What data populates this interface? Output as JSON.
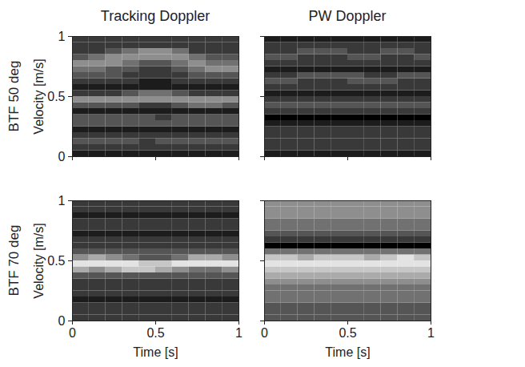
{
  "chart_data": [
    {
      "type": "heatmap",
      "title": "Tracking Doppler",
      "row_label": "BTF 50 deg",
      "ylabel": "Velocity [m/s]",
      "xlim": [
        0,
        1
      ],
      "xticks": [
        0,
        0.5,
        1
      ],
      "ylim": [
        0,
        1
      ],
      "yticks": [
        0,
        0.5,
        1
      ],
      "tick_labels": "y",
      "x_bins": [
        0,
        0.1,
        0.2,
        0.3,
        0.4,
        0.5,
        0.6,
        0.7,
        0.8,
        0.9,
        1
      ],
      "y_bins": [
        0,
        0.05,
        0.1,
        0.15,
        0.2,
        0.25,
        0.3,
        0.35,
        0.4,
        0.45,
        0.5,
        0.55,
        0.6,
        0.65,
        0.7,
        0.75,
        0.8,
        0.85,
        0.9,
        0.95,
        1
      ],
      "zlim": [
        0,
        9
      ],
      "cells": [
        [
          1,
          1,
          1,
          1,
          1,
          1,
          1,
          1,
          1,
          1
        ],
        [
          2,
          2,
          2,
          2,
          2,
          2,
          2,
          2,
          2,
          2
        ],
        [
          3,
          3,
          3,
          3,
          2,
          3,
          3,
          3,
          3,
          3
        ],
        [
          2,
          2,
          2,
          2,
          2,
          2,
          2,
          2,
          2,
          2
        ],
        [
          1,
          1,
          1,
          1,
          1,
          1,
          1,
          1,
          1,
          1
        ],
        [
          3,
          3,
          3,
          3,
          3,
          3,
          3,
          3,
          3,
          3
        ],
        [
          3,
          3,
          3,
          3,
          3,
          2,
          3,
          3,
          3,
          3
        ],
        [
          1,
          1,
          1,
          1,
          1,
          1,
          1,
          1,
          1,
          1
        ],
        [
          3,
          3,
          3,
          3,
          2,
          2,
          3,
          4,
          4,
          3
        ],
        [
          5,
          5,
          5,
          5,
          5,
          5,
          5,
          5,
          5,
          5
        ],
        [
          2,
          2,
          2,
          3,
          4,
          4,
          3,
          2,
          2,
          2
        ],
        [
          1,
          1,
          1,
          1,
          1,
          1,
          1,
          1,
          1,
          1
        ],
        [
          2,
          2,
          2,
          2,
          1,
          1,
          2,
          2,
          2,
          2
        ],
        [
          3,
          3,
          3,
          2,
          2,
          2,
          2,
          3,
          3,
          3
        ],
        [
          4,
          4,
          3,
          3,
          2,
          2,
          3,
          4,
          5,
          5
        ],
        [
          5,
          5,
          5,
          4,
          3,
          3,
          4,
          5,
          4,
          4
        ],
        [
          3,
          4,
          5,
          5,
          5,
          5,
          5,
          4,
          3,
          3
        ],
        [
          2,
          2,
          3,
          4,
          5,
          5,
          4,
          2,
          2,
          2
        ],
        [
          2,
          2,
          2,
          2,
          2,
          2,
          2,
          2,
          2,
          2
        ],
        [
          2,
          2,
          2,
          2,
          2,
          2,
          2,
          2,
          2,
          2
        ]
      ]
    },
    {
      "type": "heatmap",
      "title": "PW Doppler",
      "xlim": [
        0,
        1
      ],
      "xticks": [
        0,
        0.5,
        1
      ],
      "ylim": [
        0,
        1
      ],
      "yticks": [
        0,
        0.5,
        1
      ],
      "tick_labels": false,
      "x_bins": [
        0,
        0.1,
        0.2,
        0.3,
        0.4,
        0.5,
        0.6,
        0.7,
        0.8,
        0.9,
        1
      ],
      "y_bins": [
        0,
        0.05,
        0.1,
        0.15,
        0.2,
        0.25,
        0.3,
        0.35,
        0.4,
        0.45,
        0.5,
        0.55,
        0.6,
        0.65,
        0.7,
        0.75,
        0.8,
        0.85,
        0.9,
        0.95,
        1
      ],
      "zlim": [
        0,
        9
      ],
      "cells": [
        [
          1,
          1,
          1,
          1,
          1,
          1,
          1,
          1,
          1,
          1
        ],
        [
          2,
          2,
          2,
          2,
          2,
          2,
          2,
          2,
          2,
          2
        ],
        [
          2,
          2,
          2,
          2,
          2,
          2,
          2,
          2,
          2,
          2
        ],
        [
          2,
          2,
          2,
          2,
          2,
          2,
          2,
          2,
          2,
          2
        ],
        [
          2,
          2,
          2,
          2,
          2,
          2,
          2,
          2,
          2,
          2
        ],
        [
          1,
          1,
          1,
          1,
          1,
          1,
          1,
          1,
          1,
          1
        ],
        [
          0,
          0,
          0,
          0,
          0,
          0,
          0,
          0,
          0,
          0
        ],
        [
          2,
          2,
          2,
          2,
          2,
          2,
          2,
          2,
          2,
          2
        ],
        [
          3,
          3,
          3,
          3,
          3,
          3,
          3,
          3,
          3,
          3
        ],
        [
          2,
          2,
          2,
          2,
          2,
          2,
          2,
          2,
          2,
          2
        ],
        [
          1,
          1,
          1,
          1,
          1,
          1,
          1,
          1,
          1,
          1
        ],
        [
          2,
          2,
          2,
          2,
          2,
          2,
          2,
          2,
          2,
          2
        ],
        [
          3,
          3,
          2,
          2,
          2,
          3,
          3,
          3,
          2,
          2
        ],
        [
          2,
          2,
          3,
          3,
          3,
          3,
          2,
          2,
          3,
          3
        ],
        [
          1,
          1,
          1,
          1,
          1,
          1,
          1,
          1,
          1,
          1
        ],
        [
          2,
          2,
          2,
          2,
          2,
          2,
          2,
          2,
          2,
          2
        ],
        [
          3,
          3,
          2,
          2,
          2,
          3,
          3,
          2,
          2,
          3
        ],
        [
          2,
          2,
          3,
          3,
          3,
          2,
          2,
          3,
          3,
          2
        ],
        [
          2,
          2,
          2,
          2,
          2,
          2,
          2,
          2,
          2,
          2
        ],
        [
          1,
          1,
          1,
          1,
          1,
          1,
          1,
          1,
          1,
          1
        ]
      ]
    },
    {
      "type": "heatmap",
      "row_label": "BTF 70 deg",
      "ylabel": "Velocity [m/s]",
      "xlabel": "Time [s]",
      "xlim": [
        0,
        1
      ],
      "xticks": [
        0,
        0.5,
        1
      ],
      "ylim": [
        0,
        1
      ],
      "yticks": [
        0,
        0.5,
        1
      ],
      "tick_labels": true,
      "x_bins": [
        0,
        0.1,
        0.2,
        0.3,
        0.4,
        0.5,
        0.6,
        0.7,
        0.8,
        0.9,
        1
      ],
      "y_bins": [
        0,
        0.05,
        0.1,
        0.15,
        0.2,
        0.25,
        0.3,
        0.35,
        0.4,
        0.45,
        0.5,
        0.55,
        0.6,
        0.65,
        0.7,
        0.75,
        0.8,
        0.85,
        0.9,
        0.95,
        1
      ],
      "zlim": [
        0,
        9
      ],
      "cells": [
        [
          2,
          2,
          2,
          2,
          2,
          2,
          2,
          2,
          2,
          2
        ],
        [
          2,
          2,
          2,
          2,
          2,
          2,
          2,
          2,
          2,
          2
        ],
        [
          2,
          2,
          2,
          2,
          2,
          2,
          2,
          2,
          2,
          2
        ],
        [
          1,
          1,
          1,
          1,
          1,
          1,
          1,
          1,
          1,
          1
        ],
        [
          2,
          2,
          2,
          2,
          2,
          2,
          2,
          2,
          2,
          2
        ],
        [
          2,
          2,
          2,
          2,
          2,
          2,
          2,
          2,
          2,
          2
        ],
        [
          2,
          2,
          2,
          2,
          2,
          2,
          2,
          2,
          2,
          2
        ],
        [
          3,
          3,
          3,
          3,
          3,
          3,
          3,
          3,
          3,
          3
        ],
        [
          6,
          5,
          6,
          7,
          7,
          6,
          5,
          4,
          4,
          5
        ],
        [
          8,
          8,
          8,
          8,
          7,
          7,
          8,
          8,
          8,
          8
        ],
        [
          5,
          6,
          5,
          4,
          3,
          3,
          4,
          6,
          6,
          5
        ],
        [
          3,
          3,
          3,
          3,
          3,
          3,
          3,
          3,
          3,
          3
        ],
        [
          2,
          2,
          2,
          2,
          2,
          2,
          2,
          2,
          2,
          2
        ],
        [
          2,
          2,
          2,
          2,
          2,
          2,
          2,
          2,
          2,
          2
        ],
        [
          1,
          1,
          1,
          1,
          1,
          1,
          1,
          1,
          1,
          1
        ],
        [
          2,
          2,
          2,
          2,
          2,
          2,
          2,
          2,
          2,
          2
        ],
        [
          2,
          2,
          2,
          2,
          2,
          2,
          2,
          2,
          2,
          2
        ],
        [
          1,
          1,
          1,
          1,
          1,
          1,
          1,
          1,
          1,
          1
        ],
        [
          2,
          2,
          2,
          2,
          2,
          2,
          2,
          2,
          2,
          2
        ],
        [
          2,
          2,
          2,
          2,
          2,
          2,
          2,
          2,
          2,
          2
        ]
      ]
    },
    {
      "type": "heatmap",
      "xlabel": "Time [s]",
      "xlim": [
        0,
        1
      ],
      "xticks": [
        0,
        0.5,
        1
      ],
      "ylim": [
        0,
        1
      ],
      "yticks": [
        0,
        0.5,
        1
      ],
      "tick_labels": "x",
      "x_bins": [
        0,
        0.1,
        0.2,
        0.3,
        0.4,
        0.5,
        0.6,
        0.7,
        0.8,
        0.9,
        1
      ],
      "y_bins": [
        0,
        0.05,
        0.1,
        0.15,
        0.2,
        0.25,
        0.3,
        0.35,
        0.4,
        0.45,
        0.5,
        0.55,
        0.6,
        0.65,
        0.7,
        0.75,
        0.8,
        0.85,
        0.9,
        0.95,
        1
      ],
      "zlim": [
        0,
        9
      ],
      "cells": [
        [
          3,
          3,
          3,
          3,
          3,
          3,
          3,
          3,
          3,
          3
        ],
        [
          3,
          3,
          3,
          3,
          3,
          3,
          3,
          3,
          3,
          3
        ],
        [
          3,
          3,
          3,
          3,
          3,
          3,
          3,
          3,
          3,
          3
        ],
        [
          4,
          4,
          4,
          4,
          4,
          4,
          4,
          4,
          4,
          4
        ],
        [
          4,
          4,
          4,
          4,
          4,
          4,
          4,
          4,
          4,
          4
        ],
        [
          4,
          4,
          4,
          4,
          4,
          4,
          4,
          4,
          4,
          4
        ],
        [
          5,
          5,
          5,
          5,
          5,
          5,
          5,
          5,
          5,
          5
        ],
        [
          6,
          6,
          6,
          6,
          6,
          6,
          6,
          6,
          6,
          6
        ],
        [
          7,
          7,
          7,
          7,
          7,
          7,
          7,
          7,
          7,
          7
        ],
        [
          8,
          8,
          8,
          8,
          8,
          8,
          8,
          8,
          8,
          8
        ],
        [
          7,
          7,
          6,
          7,
          7,
          7,
          6,
          7,
          8,
          7
        ],
        [
          4,
          4,
          4,
          4,
          4,
          4,
          4,
          4,
          4,
          4
        ],
        [
          0,
          0,
          0,
          0,
          0,
          0,
          0,
          0,
          0,
          0
        ],
        [
          2,
          2,
          2,
          2,
          2,
          2,
          2,
          2,
          2,
          2
        ],
        [
          3,
          3,
          3,
          3,
          3,
          3,
          3,
          3,
          3,
          3
        ],
        [
          4,
          4,
          4,
          4,
          4,
          4,
          4,
          4,
          4,
          4
        ],
        [
          4,
          4,
          4,
          4,
          4,
          4,
          4,
          4,
          4,
          4
        ],
        [
          5,
          5,
          5,
          5,
          5,
          5,
          5,
          5,
          5,
          5
        ],
        [
          5,
          5,
          5,
          5,
          5,
          5,
          5,
          5,
          5,
          5
        ],
        [
          5,
          5,
          5,
          5,
          5,
          5,
          5,
          5,
          5,
          5
        ]
      ]
    }
  ]
}
